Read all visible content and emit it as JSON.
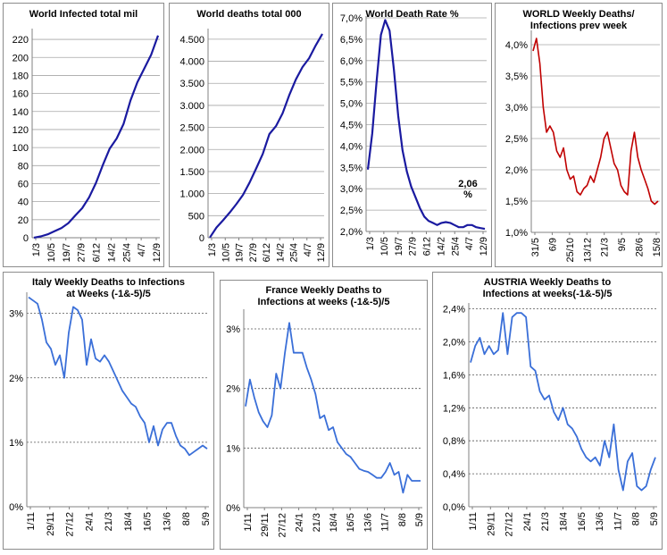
{
  "charts": [
    {
      "id": "world-infected",
      "chart_data": {
        "type": "line",
        "title": "World Infected total  mil",
        "xlabel": "",
        "ylabel": "",
        "ylim": [
          0,
          230
        ],
        "y_ticks": [
          0,
          20,
          40,
          60,
          80,
          100,
          120,
          140,
          160,
          180,
          200,
          220
        ],
        "y_tick_labels": [
          "0",
          "20",
          "40",
          "60",
          "80",
          "100",
          "120",
          "140",
          "160",
          "180",
          "200",
          "220"
        ],
        "x_tick_labels": [
          "1/3",
          "10/5",
          "19/7",
          "27/9",
          "6/12",
          "14/2",
          "25/4",
          "4/7",
          "12/9"
        ],
        "grid": true,
        "series": [
          {
            "values": [
              0.1,
              1.5,
              3.8,
              7.3,
              10.8,
              16.3,
              24.7,
              32.8,
              44.8,
              60.9,
              80.7,
              98.9,
              110.1,
              126.3,
              152.2,
              172.4,
              187.8,
              202.9,
              224.3
            ],
            "color": "#1a1aa0"
          }
        ]
      }
    },
    {
      "id": "world-deaths",
      "chart_data": {
        "type": "line",
        "title": "World deaths total 000",
        "xlabel": "",
        "ylabel": "",
        "ylim": [
          0,
          4700
        ],
        "y_ticks": [
          0,
          500,
          1000,
          1500,
          2000,
          2500,
          3000,
          3500,
          4000,
          4500
        ],
        "y_tick_labels": [
          "0",
          "500",
          "1.000",
          "1.500",
          "2.000",
          "2.500",
          "3.000",
          "3.500",
          "4.000",
          "4.500"
        ],
        "x_tick_labels": [
          "1/3",
          "10/5",
          "19/7",
          "27/9",
          "6/12",
          "14/2",
          "25/4",
          "4/7",
          "12/9"
        ],
        "grid": true,
        "series": [
          {
            "values": [
              5,
              230,
              395,
              570,
              760,
              970,
              1250,
              1570,
              1900,
              2350,
              2530,
              2820,
              3230,
              3590,
              3870,
              4070,
              4360,
              4620
            ],
            "color": "#1a1aa0"
          }
        ]
      }
    },
    {
      "id": "world-death-rate",
      "chart_data": {
        "type": "line",
        "title": "World Death Rate %",
        "xlabel": "",
        "ylabel": "",
        "ylim": [
          2.0,
          7.0
        ],
        "y_ticks": [
          2.0,
          2.5,
          3.0,
          3.5,
          4.0,
          4.5,
          5.0,
          5.5,
          6.0,
          6.5,
          7.0
        ],
        "y_tick_labels": [
          "2,0%",
          "2,5%",
          "3,0%",
          "3,5%",
          "4,0%",
          "4,5%",
          "5,0%",
          "5,5%",
          "6,0%",
          "6,5%",
          "7,0%"
        ],
        "x_tick_labels": [
          "1/3",
          "10/5",
          "19/7",
          "27/9",
          "6/12",
          "14/2",
          "25/4",
          "4/7",
          "12/9"
        ],
        "grid": true,
        "annotation": "2,06\n%",
        "series": [
          {
            "values": [
              3.45,
              4.3,
              5.5,
              6.6,
              6.95,
              6.7,
              5.8,
              4.7,
              3.9,
              3.4,
              3.05,
              2.8,
              2.55,
              2.35,
              2.25,
              2.2,
              2.15,
              2.2,
              2.22,
              2.2,
              2.15,
              2.1,
              2.1,
              2.15,
              2.15,
              2.1,
              2.08,
              2.06
            ],
            "color": "#1a1aa0"
          }
        ]
      }
    },
    {
      "id": "world-weekly",
      "chart_data": {
        "type": "line",
        "title": "WORLD Weekly  Deaths/\nInfections prev week",
        "xlabel": "",
        "ylabel": "",
        "ylim": [
          1.0,
          4.2
        ],
        "y_ticks": [
          1.0,
          1.5,
          2.0,
          2.5,
          3.0,
          3.5,
          4.0
        ],
        "y_tick_labels": [
          "1,0%",
          "1,5%",
          "2,0%",
          "2,5%",
          "3,0%",
          "3,5%",
          "4,0%"
        ],
        "x_tick_labels": [
          "31/5",
          "6/9",
          "25/10",
          "13/12",
          "21/3",
          "9/5",
          "28/6",
          "15/8"
        ],
        "grid": true,
        "series": [
          {
            "values": [
              3.9,
              4.1,
              3.7,
              3.0,
              2.6,
              2.7,
              2.6,
              2.3,
              2.2,
              2.35,
              2.0,
              1.85,
              1.9,
              1.65,
              1.6,
              1.7,
              1.75,
              1.9,
              1.8,
              2.0,
              2.2,
              2.5,
              2.6,
              2.35,
              2.1,
              2.0,
              1.75,
              1.65,
              1.6,
              2.3,
              2.6,
              2.2,
              2.0,
              1.85,
              1.7,
              1.5,
              1.45,
              1.5
            ],
            "color": "#c00000"
          }
        ]
      }
    },
    {
      "id": "italy",
      "chart_data": {
        "type": "line",
        "title": "Italy Weekly Deaths to Infections\nat Weeks (-1&-5)/5",
        "xlabel": "",
        "ylabel": "",
        "ylim": [
          0,
          3.3
        ],
        "y_ticks": [
          0,
          1,
          2,
          3
        ],
        "y_tick_labels": [
          "0%",
          "1%",
          "2%",
          "3%"
        ],
        "x_tick_labels": [
          "1/11",
          "29/11",
          "27/12",
          "24/1",
          "21/3",
          "18/4",
          "16/5",
          "13/6",
          "8/8",
          "5/9"
        ],
        "grid": true,
        "series": [
          {
            "values": [
              3.25,
              3.2,
              3.15,
              2.9,
              2.55,
              2.45,
              2.2,
              2.35,
              2.0,
              2.7,
              3.1,
              3.05,
              2.9,
              2.2,
              2.6,
              2.3,
              2.25,
              2.35,
              2.25,
              2.1,
              1.95,
              1.8,
              1.7,
              1.6,
              1.55,
              1.4,
              1.3,
              1.0,
              1.25,
              0.95,
              1.2,
              1.3,
              1.3,
              1.1,
              0.95,
              0.9,
              0.8,
              0.85,
              0.9,
              0.95,
              0.9
            ],
            "color": "#3a6fd8"
          }
        ]
      }
    },
    {
      "id": "france",
      "chart_data": {
        "type": "line",
        "title": "France Weekly Deaths to\nInfections at weeks (-1&-5)/5",
        "xlabel": "",
        "ylabel": "",
        "ylim": [
          0,
          3.3
        ],
        "y_ticks": [
          0,
          1,
          2,
          3
        ],
        "y_tick_labels": [
          "0%",
          "1%",
          "2%",
          "3%"
        ],
        "x_tick_labels": [
          "1/11",
          "29/11",
          "27/12",
          "24/1",
          "21/3",
          "18/4",
          "16/5",
          "13/6",
          "11/7",
          "8/8",
          "5/9"
        ],
        "grid": true,
        "series": [
          {
            "values": [
              1.7,
              2.15,
              1.85,
              1.6,
              1.45,
              1.35,
              1.55,
              2.25,
              2.0,
              2.6,
              3.1,
              2.6,
              2.6,
              2.6,
              2.35,
              2.15,
              1.9,
              1.5,
              1.55,
              1.3,
              1.35,
              1.1,
              1.0,
              0.9,
              0.85,
              0.75,
              0.65,
              0.62,
              0.6,
              0.55,
              0.5,
              0.5,
              0.6,
              0.75,
              0.55,
              0.6,
              0.25,
              0.55,
              0.45,
              0.45,
              0.45
            ],
            "color": "#3a6fd8"
          }
        ]
      }
    },
    {
      "id": "austria",
      "chart_data": {
        "type": "line",
        "title": "AUSTRIA Weekly Deaths to\nInfections at weeks(-1&-5)/5",
        "xlabel": "",
        "ylabel": "",
        "ylim": [
          0,
          2.45
        ],
        "y_ticks": [
          0,
          0.4,
          0.8,
          1.2,
          1.6,
          2.0,
          2.4
        ],
        "y_tick_labels": [
          "0,0%",
          "0,4%",
          "0,8%",
          "1,2%",
          "1,6%",
          "2,0%",
          "2,4%"
        ],
        "x_tick_labels": [
          "1/11",
          "29/11",
          "27/12",
          "24/1",
          "21/3",
          "18/4",
          "16/5",
          "13/6",
          "11/7",
          "8/8",
          "5/9"
        ],
        "grid": true,
        "series": [
          {
            "values": [
              1.75,
              1.95,
              2.05,
              1.85,
              1.95,
              1.85,
              1.9,
              2.35,
              1.85,
              2.3,
              2.35,
              2.35,
              2.3,
              1.7,
              1.65,
              1.4,
              1.3,
              1.35,
              1.15,
              1.05,
              1.2,
              1.0,
              0.95,
              0.85,
              0.7,
              0.6,
              0.55,
              0.6,
              0.5,
              0.8,
              0.6,
              1.0,
              0.45,
              0.2,
              0.55,
              0.65,
              0.25,
              0.2,
              0.25,
              0.45,
              0.6
            ],
            "color": "#3a6fd8"
          }
        ]
      }
    }
  ]
}
